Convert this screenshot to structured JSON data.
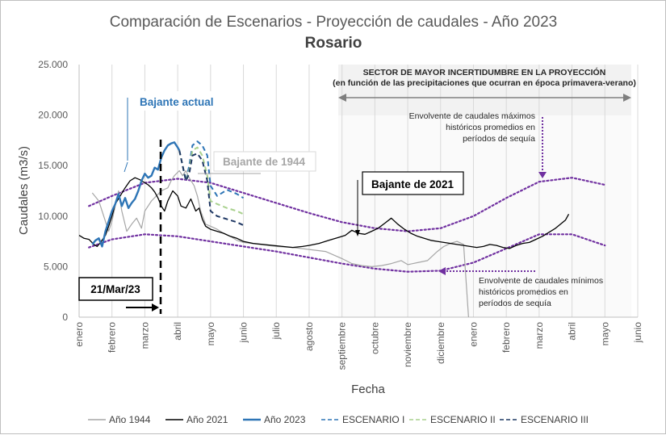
{
  "chart_data": {
    "type": "line",
    "title": "Comparación de Escenarios - Proyección de caudales - Año 2023",
    "subtitle": "Rosario",
    "xlabel": "Fecha",
    "ylabel": "Caudales (m3/s)",
    "ylim": [
      0,
      25000
    ],
    "yticks": [
      "0",
      "5.000",
      "10.000",
      "15.000",
      "20.000",
      "25.000"
    ],
    "xticks": [
      "enero",
      "febrero",
      "marzo",
      "abril",
      "mayo",
      "junio",
      "julio",
      "agosto",
      "septiembre",
      "octubre",
      "noviembre",
      "diciembre",
      "enero",
      "febrero",
      "marzo",
      "abril",
      "mayo",
      "junio"
    ],
    "grid": "vertical",
    "legend_position": "bottom",
    "series": [
      {
        "name": "Año 1944",
        "color": "#a6a6a6",
        "style": "solid",
        "x": [
          0.4,
          0.6,
          0.9,
          1.0,
          1.2,
          1.3,
          1.45,
          1.6,
          1.75,
          1.9,
          2.0,
          2.2,
          2.35,
          2.5,
          2.7,
          2.8,
          2.9,
          3.05,
          3.15,
          3.25,
          3.35,
          3.5,
          3.6,
          3.7,
          3.85,
          4.0,
          4.2,
          4.4,
          4.6,
          4.8,
          5.0,
          5.5,
          6.0,
          6.5,
          7.0,
          7.5,
          8.0,
          8.3,
          8.6,
          8.9,
          9.2,
          9.5,
          9.8,
          10.0,
          10.3,
          10.6,
          10.9,
          11.1,
          11.3,
          11.5,
          11.7,
          11.85
        ],
        "y": [
          12300,
          11500,
          8500,
          9500,
          12500,
          10500,
          8500,
          9200,
          9800,
          8800,
          10500,
          11500,
          12000,
          12500,
          12800,
          13500,
          14000,
          14500,
          14000,
          14500,
          13800,
          13000,
          12000,
          10500,
          9200,
          9000,
          8700,
          8300,
          8000,
          7600,
          7400,
          7200,
          7000,
          6900,
          6700,
          6500,
          5800,
          5300,
          5100,
          5000,
          5100,
          5300,
          5600,
          5200,
          5400,
          5600,
          6500,
          7000,
          7300,
          7500,
          7200,
          0
        ]
      },
      {
        "name": "Año 2021",
        "color": "#000000",
        "style": "solid",
        "x": [
          0.0,
          0.15,
          0.3,
          0.45,
          0.55,
          0.65,
          0.8,
          0.9,
          1.0,
          1.1,
          1.25,
          1.4,
          1.55,
          1.7,
          1.85,
          2.0,
          2.1,
          2.2,
          2.3,
          2.4,
          2.5,
          2.6,
          2.7,
          2.85,
          3.0,
          3.1,
          3.25,
          3.4,
          3.55,
          3.65,
          3.75,
          3.85,
          4.0,
          4.2,
          4.4,
          4.6,
          4.8,
          5.0,
          5.3,
          5.6,
          5.9,
          6.2,
          6.5,
          6.8,
          7.0,
          7.3,
          7.6,
          7.9,
          8.1,
          8.3,
          8.5,
          8.7,
          8.9,
          9.1,
          9.3,
          9.5,
          9.7,
          9.9,
          10.1,
          10.3,
          10.5,
          10.7,
          10.9,
          11.1,
          11.3,
          11.5,
          11.7,
          11.9,
          12.1,
          12.3,
          12.5,
          12.7,
          12.9,
          13.1,
          13.3,
          13.5,
          13.7,
          13.9,
          14.1,
          14.3,
          14.5,
          14.65,
          14.8,
          14.9
        ],
        "y": [
          8100,
          7800,
          7700,
          7200,
          7000,
          7400,
          8100,
          9000,
          10000,
          11200,
          12000,
          12800,
          13500,
          13800,
          13600,
          13300,
          13100,
          12800,
          12400,
          11800,
          11000,
          10500,
          11500,
          12500,
          12000,
          11000,
          10800,
          11700,
          10500,
          10800,
          9700,
          9000,
          8700,
          8500,
          8300,
          8000,
          7800,
          7500,
          7300,
          7200,
          7100,
          7000,
          6900,
          7000,
          7100,
          7300,
          7600,
          7900,
          8100,
          8600,
          8300,
          8200,
          8500,
          8800,
          9300,
          9800,
          9200,
          8700,
          8300,
          8000,
          7800,
          7600,
          7500,
          7400,
          7300,
          7200,
          7100,
          7000,
          6900,
          7000,
          7200,
          7100,
          6900,
          6800,
          7100,
          7300,
          7400,
          7700,
          8000,
          8400,
          8800,
          9200,
          9600,
          10200
        ]
      },
      {
        "name": "Año 2023",
        "color": "#2e75b6",
        "style": "solid",
        "x": [
          0.4,
          0.5,
          0.6,
          0.7,
          0.8,
          0.9,
          1.0,
          1.1,
          1.2,
          1.3,
          1.4,
          1.5,
          1.6,
          1.7,
          1.8,
          1.9,
          2.0,
          2.1,
          2.2,
          2.3,
          2.4,
          2.5,
          2.6,
          2.7,
          2.8,
          2.9,
          3.0,
          3.05
        ],
        "y": [
          7200,
          7600,
          7800,
          7000,
          8500,
          9500,
          10500,
          11200,
          12200,
          11000,
          11800,
          10800,
          11300,
          11700,
          12500,
          13500,
          14200,
          13800,
          14000,
          14800,
          14600,
          15800,
          16500,
          17000,
          17200,
          17300,
          16800,
          16500
        ]
      },
      {
        "name": "ESCENARIO I",
        "color": "#2e75b6",
        "style": "dashed",
        "x": [
          3.05,
          3.15,
          3.25,
          3.35,
          3.45,
          3.6,
          3.75,
          3.9,
          4.0,
          4.2,
          4.5,
          4.8,
          5.0
        ],
        "y": [
          16500,
          15000,
          13500,
          15000,
          17000,
          17400,
          17000,
          16000,
          13000,
          12000,
          12600,
          12200,
          11800
        ]
      },
      {
        "name": "ESCENARIO II",
        "color": "#a9d18e",
        "style": "dashed",
        "x": [
          3.05,
          3.15,
          3.25,
          3.35,
          3.45,
          3.6,
          3.75,
          3.9,
          4.0,
          4.2,
          4.5,
          4.8,
          5.0
        ],
        "y": [
          16500,
          15000,
          13500,
          14500,
          16500,
          16800,
          16000,
          14000,
          11500,
          11200,
          10800,
          10500,
          10200
        ]
      },
      {
        "name": "ESCENARIO III",
        "color": "#1f3864",
        "style": "dashed",
        "x": [
          3.05,
          3.15,
          3.25,
          3.35,
          3.45,
          3.6,
          3.75,
          3.9,
          4.0,
          4.2,
          4.5,
          4.8,
          5.0
        ],
        "y": [
          16500,
          15000,
          13500,
          14200,
          16000,
          16200,
          15500,
          13500,
          10500,
          10000,
          9700,
          9400,
          9100
        ]
      }
    ],
    "envelopes": [
      {
        "label": "Envolvente de caudales máximos",
        "color": "#7030a0",
        "style": "dotted",
        "x": [
          0.3,
          1.0,
          2.0,
          3.0,
          4.0,
          5.0,
          6.0,
          7.0,
          8.0,
          9.0,
          10.0,
          11.0,
          12.0,
          13.0,
          14.0,
          15.0,
          16.0
        ],
        "y": [
          11000,
          12000,
          13300,
          13700,
          13300,
          12300,
          11300,
          10300,
          9400,
          8800,
          8500,
          8800,
          10000,
          11800,
          13400,
          13800,
          13100
        ]
      },
      {
        "label": "Envolvente de caudales mínimos",
        "color": "#7030a0",
        "style": "dotted",
        "x": [
          0.3,
          1.0,
          2.0,
          3.0,
          4.0,
          5.0,
          6.0,
          7.0,
          8.0,
          9.0,
          10.0,
          11.0,
          12.0,
          13.0,
          14.0,
          15.0,
          16.0
        ],
        "y": [
          6900,
          7700,
          8200,
          8000,
          7500,
          7000,
          6500,
          5900,
          5300,
          4800,
          4500,
          4600,
          5400,
          6800,
          8200,
          8200,
          7100
        ]
      }
    ],
    "annotations": {
      "uncertainty_line1": "SECTOR DE MAYOR INCERTIDUMBRE EN LA PROYECCIÓN",
      "uncertainty_line2": "(en función de las precipitaciones que ocurran  en época primavera-verano)",
      "max_env": [
        "Envolvente de caudales máximos",
        "históricos promedios en",
        "períodos de sequía"
      ],
      "min_env": [
        "Envolvente de caudales mínimos",
        "históricos promedios en",
        "períodos de sequía"
      ],
      "bajante_actual": "Bajante actual",
      "bajante_1944": "Bajante de 1944",
      "bajante_2021": "Bajante de 2021",
      "date_box": "21/Mar/23"
    }
  },
  "legend": [
    {
      "label": "Año 1944",
      "color": "#a6a6a6",
      "style": "solid"
    },
    {
      "label": "Año 2021",
      "color": "#000000",
      "style": "solid"
    },
    {
      "label": "Año 2023",
      "color": "#2e75b6",
      "style": "thick"
    },
    {
      "label": "ESCENARIO I",
      "color": "#2e75b6",
      "style": "dashed"
    },
    {
      "label": "ESCENARIO II",
      "color": "#a9d18e",
      "style": "dashed"
    },
    {
      "label": "ESCENARIO III",
      "color": "#1f3864",
      "style": "dashed"
    }
  ]
}
